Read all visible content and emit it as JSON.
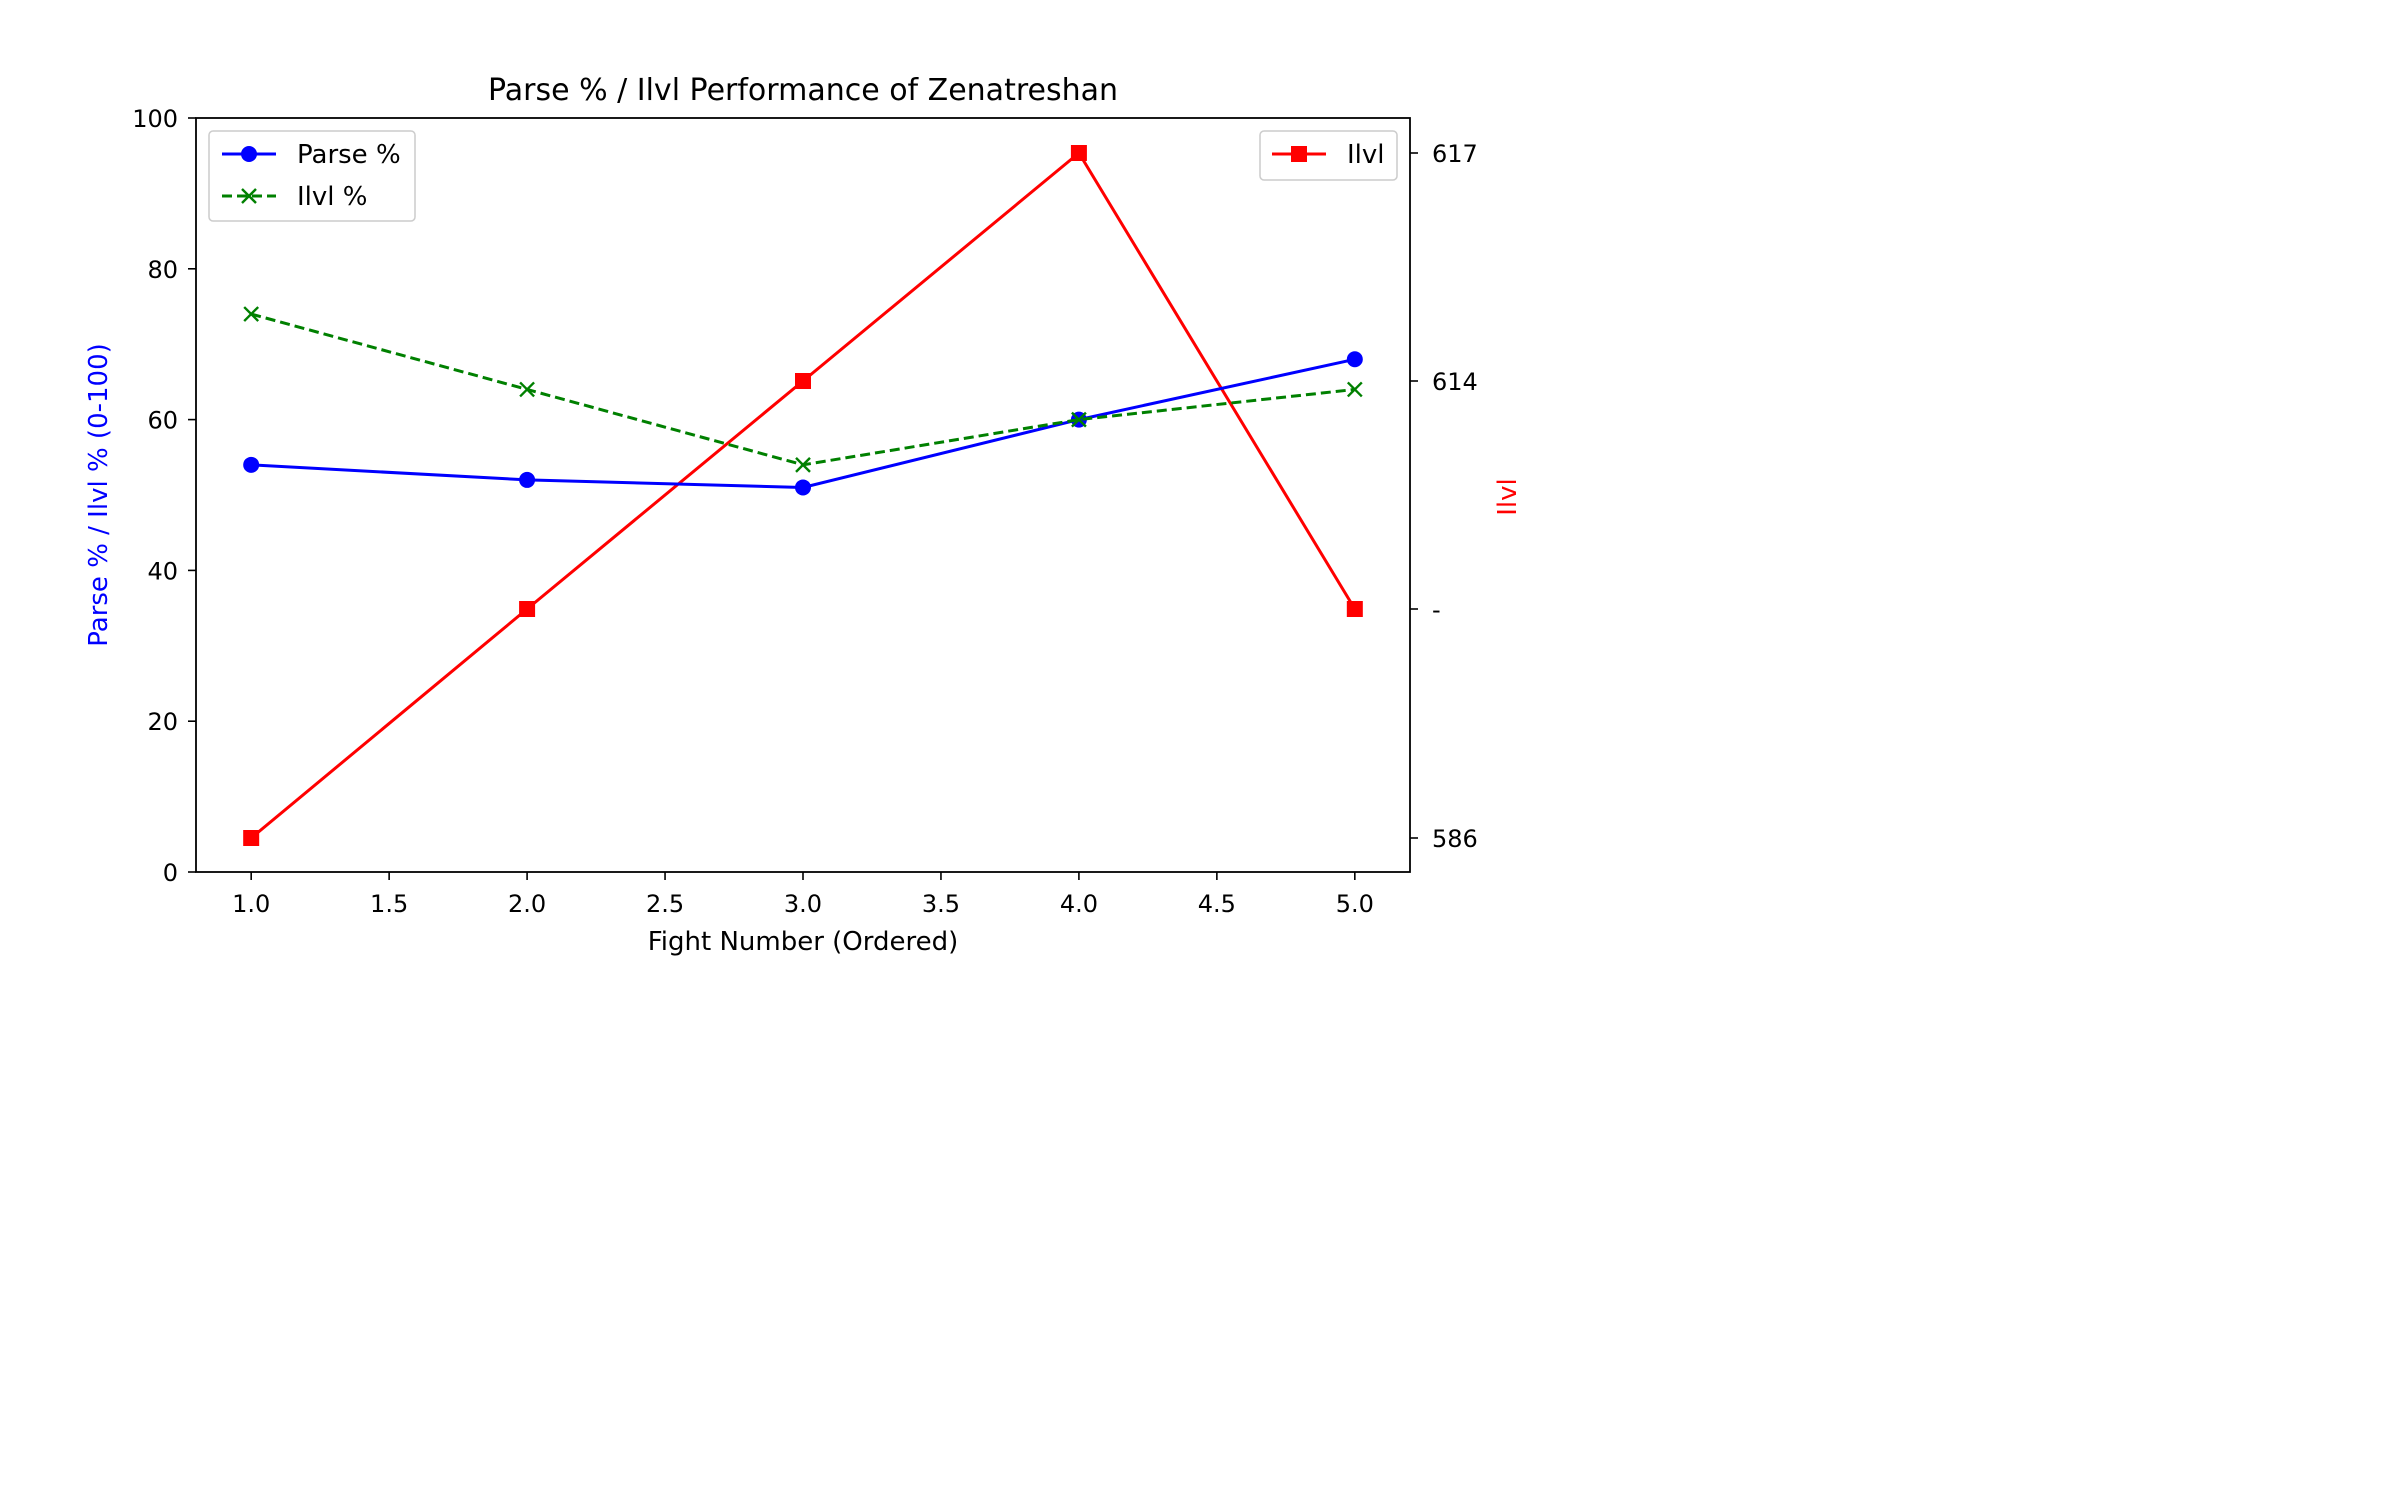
{
  "chart_data": {
    "type": "line",
    "title": "Parse % / Ilvl Performance of Zenatreshan",
    "xlabel": "Fight Number (Ordered)",
    "ylabel_left": "Parse % / Ilvl % (0-100)",
    "ylabel_right": "Ilvl",
    "x": [
      1.0,
      2.0,
      3.0,
      4.0,
      5.0
    ],
    "xlim": [
      0.8,
      5.2
    ],
    "ylim_left": [
      0,
      100
    ],
    "x_ticks": [
      "1.0",
      "1.5",
      "2.0",
      "2.5",
      "3.0",
      "3.5",
      "4.0",
      "4.5",
      "5.0"
    ],
    "x_tick_values": [
      1.0,
      1.5,
      2.0,
      2.5,
      3.0,
      3.5,
      4.0,
      4.5,
      5.0
    ],
    "y_left_ticks": [
      "0",
      "20",
      "40",
      "60",
      "80",
      "100"
    ],
    "y_left_tick_values": [
      0,
      20,
      40,
      60,
      80,
      100
    ],
    "y_right_ticks": [
      "586",
      "-",
      "614",
      "617"
    ],
    "y_right_categories": [
      "586",
      "-",
      "614",
      "617"
    ],
    "series_left": [
      {
        "name": "Parse %",
        "values": [
          54,
          52,
          51,
          60,
          68
        ],
        "color": "#0000ff",
        "marker": "circle",
        "dash": "solid"
      },
      {
        "name": "Ilvl %",
        "values": [
          74,
          64,
          54,
          60,
          64
        ],
        "color": "#008000",
        "marker": "x",
        "dash": "dashed"
      }
    ],
    "series_right": [
      {
        "name": "Ilvl",
        "values": [
          "586",
          "-",
          "614",
          "617",
          "-"
        ],
        "color": "#ff0000",
        "marker": "square",
        "dash": "solid"
      }
    ],
    "grid": false,
    "legend_left": "top-left",
    "legend_right": "top-right",
    "colors": {
      "left_axis_label": "#0000ff",
      "right_axis_label": "#ff0000"
    }
  }
}
